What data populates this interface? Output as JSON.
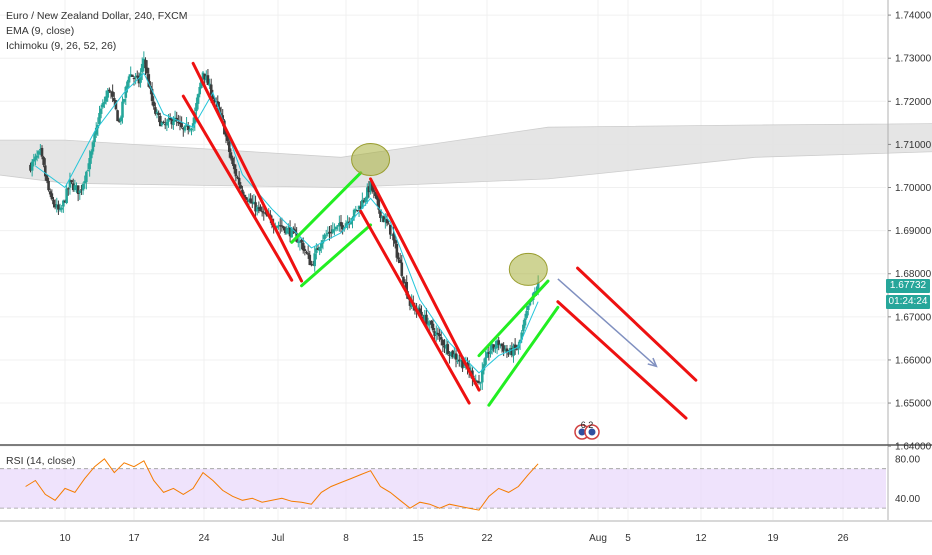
{
  "header": {
    "title": "Euro / New Zealand Dollar, 240, FXCM",
    "indicator_1": "EMA (9, close)",
    "indicator_2": "Ichimoku (9, 26, 52, 26)"
  },
  "rsi_panel": {
    "label": "RSI (14, close)",
    "upper_band": 70,
    "lower_band": 30
  },
  "price_tags": {
    "last_price": "1.67732",
    "countdown": "01:24:24"
  },
  "badge_text": "6 2",
  "colors": {
    "candle_up": "#26a69a",
    "candle_down": "#3c3c3c",
    "ema": "#26c6da",
    "cloud": "#e3e3e3",
    "cloud_edge": "#c8c8c8",
    "channel_red": "#ee1111",
    "channel_green": "#22ee22",
    "highlight_ellipse": "#a8b03c",
    "projection_arrow": "#8090c0",
    "rsi_line": "#f57c00",
    "rsi_band_fill": "#ead9fb",
    "price_tag": "#26a69a",
    "countdown_tag": "#26a69a"
  },
  "chart_data": {
    "type": "candlestick",
    "symbol": "EURNZD",
    "timeframe": "240",
    "y_axis": {
      "ticks": [
        "1.74000",
        "1.73000",
        "1.72000",
        "1.71000",
        "1.70000",
        "1.69000",
        "1.68000",
        "1.67000",
        "1.66000",
        "1.65000",
        "1.64000"
      ],
      "range": [
        1.6405,
        1.7435
      ]
    },
    "x_axis": {
      "ticks": [
        "10",
        "17",
        "24",
        "Jul",
        "8",
        "15",
        "22",
        "Aug",
        "5",
        "12",
        "19",
        "26"
      ]
    },
    "rsi_axis": {
      "ticks": [
        "80.00",
        "40.00"
      ],
      "range": [
        18,
        92
      ]
    },
    "price_path": [
      [
        "Jun 6 12:00",
        1.705
      ],
      [
        "Jun 7 12:00",
        1.708
      ],
      [
        "Jun 8 12:00",
        1.6975
      ],
      [
        "Jun 9 12:00",
        1.694
      ],
      [
        "Jun 10 12:00",
        1.701
      ],
      [
        "Jun 11 12:00",
        1.699
      ],
      [
        "Jun 12 12:00",
        1.706
      ],
      [
        "Jun 13 12:00",
        1.717
      ],
      [
        "Jun 14 12:00",
        1.723
      ],
      [
        "Jun 15 12:00",
        1.715
      ],
      [
        "Jun 16 12:00",
        1.7265
      ],
      [
        "Jun 17 12:00",
        1.7245
      ],
      [
        "Jun 18 00:00",
        1.73
      ],
      [
        "Jun 19 00:00",
        1.718
      ],
      [
        "Jun 20 00:00",
        1.714
      ],
      [
        "Jun 21 00:00",
        1.716
      ],
      [
        "Jun 22 00:00",
        1.713
      ],
      [
        "Jun 23 00:00",
        1.715
      ],
      [
        "Jun 24 00:00",
        1.727
      ],
      [
        "Jun 25 00:00",
        1.721
      ],
      [
        "Jun 26 00:00",
        1.715
      ],
      [
        "Jun 27 00:00",
        1.705
      ],
      [
        "Jun 28 00:00",
        1.699
      ],
      [
        "Jun 29 00:00",
        1.696
      ],
      [
        "Jun 30 00:00",
        1.694
      ],
      [
        "Jul 1 00:00",
        1.692
      ],
      [
        "Jul 2 00:00",
        1.691
      ],
      [
        "Jul 3 00:00",
        1.6895
      ],
      [
        "Jul 4 00:00",
        1.687
      ],
      [
        "Jul 5 00:00",
        1.682
      ],
      [
        "Jul 6 00:00",
        1.688
      ],
      [
        "Jul 7 00:00",
        1.69
      ],
      [
        "Jul 8 00:00",
        1.691
      ],
      [
        "Jul 9 00:00",
        1.693
      ],
      [
        "Jul 10 00:00",
        1.696
      ],
      [
        "Jul 11 00:00",
        1.7005
      ],
      [
        "Jul 12 00:00",
        1.694
      ],
      [
        "Jul 13 00:00",
        1.69
      ],
      [
        "Jul 14 00:00",
        1.682
      ],
      [
        "Jul 15 00:00",
        1.673
      ],
      [
        "Jul 16 00:00",
        1.671
      ],
      [
        "Jul 17 00:00",
        1.668
      ],
      [
        "Jul 18 00:00",
        1.665
      ],
      [
        "Jul 19 00:00",
        1.662
      ],
      [
        "Jul 20 00:00",
        1.66
      ],
      [
        "Jul 21 00:00",
        1.6575
      ],
      [
        "Jul 22 00:00",
        1.6545
      ],
      [
        "Jul 23 00:00",
        1.662
      ],
      [
        "Jul 24 00:00",
        1.664
      ],
      [
        "Jul 25 00:00",
        1.6615
      ],
      [
        "Jul 26 00:00",
        1.663
      ],
      [
        "Jul 27 00:00",
        1.672
      ],
      [
        "Jul 28 00:00",
        1.6773
      ]
    ],
    "ema_9": [
      [
        "Jun 7 00:00",
        1.705
      ],
      [
        "Jun 10 00:00",
        1.7
      ],
      [
        "Jun 13 00:00",
        1.713
      ],
      [
        "Jun 16 00:00",
        1.722
      ],
      [
        "Jun 18 00:00",
        1.7265
      ],
      [
        "Jun 20 00:00",
        1.717
      ],
      [
        "Jun 23 00:00",
        1.714
      ],
      [
        "Jun 25 00:00",
        1.722
      ],
      [
        "Jun 28 00:00",
        1.703
      ],
      [
        "Jul 1 00:00",
        1.695
      ],
      [
        "Jul 5 00:00",
        1.686
      ],
      [
        "Jul 8 00:00",
        1.6895
      ],
      [
        "Jul 11 00:00",
        1.6975
      ],
      [
        "Jul 13 00:00",
        1.692
      ],
      [
        "Jul 16 00:00",
        1.674
      ],
      [
        "Jul 19 00:00",
        1.664
      ],
      [
        "Jul 22 00:00",
        1.657
      ],
      [
        "Jul 24 00:00",
        1.661
      ],
      [
        "Jul 26 00:00",
        1.663
      ],
      [
        "Jul 28 00:00",
        1.6735
      ]
    ],
    "ichimoku_cloud_top": [
      [
        "Jun 6 00:00",
        1.711
      ],
      [
        "Jun 10 00:00",
        1.711
      ],
      [
        "Jun 14 00:00",
        1.707
      ],
      [
        "Jun 17 00:00",
        1.714
      ],
      [
        "Jun 20 00:00",
        1.7145
      ],
      [
        "Jun 24 00:00",
        1.715
      ],
      [
        "Jun 27 00:00",
        1.722
      ],
      [
        "Jul 1 00:00",
        1.722
      ],
      [
        "Jul 4 00:00",
        1.718
      ],
      [
        "Jul 7 00:00",
        1.712
      ],
      [
        "Jul 10 00:00",
        1.706
      ],
      [
        "Jul 13 00:00",
        1.698
      ],
      [
        "Jul 16 00:00",
        1.696
      ],
      [
        "Jul 19 00:00",
        1.692
      ],
      [
        "Jul 22 00:00",
        1.688
      ],
      [
        "Jul 25 00:00",
        1.684
      ],
      [
        "Jul 28 00:00",
        1.679
      ],
      [
        "Jul 31 00:00",
        1.672
      ],
      [
        "Aug 1 12:00",
        1.669
      ]
    ],
    "ichimoku_cloud_bottom": [
      [
        "Jun 6 00:00",
        1.709
      ],
      [
        "Jun 10 00:00",
        1.701
      ],
      [
        "Jun 14 00:00",
        1.7
      ],
      [
        "Jun 17 00:00",
        1.702
      ],
      [
        "Jun 20 00:00",
        1.707
      ],
      [
        "Jun 24 00:00",
        1.709
      ],
      [
        "Jun 27 00:00",
        1.71
      ],
      [
        "Jul 1 00:00",
        1.708
      ],
      [
        "Jul 4 00:00",
        1.703
      ],
      [
        "Jul 7 00:00",
        1.701
      ],
      [
        "Jul 10 00:00",
        1.699
      ],
      [
        "Jul 13 00:00",
        1.694
      ],
      [
        "Jul 16 00:00",
        1.688
      ],
      [
        "Jul 19 00:00",
        1.681
      ],
      [
        "Jul 22 00:00",
        1.676
      ],
      [
        "Jul 25 00:00",
        1.673
      ],
      [
        "Jul 28 00:00",
        1.666
      ],
      [
        "Jul 31 00:00",
        1.661
      ],
      [
        "Aug 1 12:00",
        1.66
      ]
    ],
    "rsi_path": [
      [
        "Jun 6 00:00",
        52
      ],
      [
        "Jun 7 00:00",
        58
      ],
      [
        "Jun 8 00:00",
        44
      ],
      [
        "Jun 9 00:00",
        38
      ],
      [
        "Jun 10 00:00",
        50
      ],
      [
        "Jun 11 00:00",
        46
      ],
      [
        "Jun 12 00:00",
        60
      ],
      [
        "Jun 13 00:00",
        72
      ],
      [
        "Jun 14 00:00",
        80
      ],
      [
        "Jun 15 00:00",
        66
      ],
      [
        "Jun 16 00:00",
        76
      ],
      [
        "Jun 17 00:00",
        72
      ],
      [
        "Jun 18 00:00",
        78
      ],
      [
        "Jun 19 00:00",
        58
      ],
      [
        "Jun 20 00:00",
        46
      ],
      [
        "Jun 21 00:00",
        50
      ],
      [
        "Jun 22 00:00",
        44
      ],
      [
        "Jun 23 00:00",
        50
      ],
      [
        "Jun 24 00:00",
        66
      ],
      [
        "Jun 25 00:00",
        58
      ],
      [
        "Jun 26 00:00",
        48
      ],
      [
        "Jun 27 00:00",
        42
      ],
      [
        "Jun 28 00:00",
        38
      ],
      [
        "Jun 29 00:00",
        40
      ],
      [
        "Jun 30 00:00",
        36
      ],
      [
        "Jul 1 00:00",
        38
      ],
      [
        "Jul 2 00:00",
        40
      ],
      [
        "Jul 3 00:00",
        37
      ],
      [
        "Jul 4 00:00",
        36
      ],
      [
        "Jul 5 00:00",
        34
      ],
      [
        "Jul 6 00:00",
        46
      ],
      [
        "Jul 7 00:00",
        52
      ],
      [
        "Jul 8 00:00",
        56
      ],
      [
        "Jul 9 00:00",
        60
      ],
      [
        "Jul 10 00:00",
        64
      ],
      [
        "Jul 11 00:00",
        68
      ],
      [
        "Jul 12 00:00",
        52
      ],
      [
        "Jul 13 00:00",
        46
      ],
      [
        "Jul 14 00:00",
        38
      ],
      [
        "Jul 15 00:00",
        30
      ],
      [
        "Jul 16 00:00",
        36
      ],
      [
        "Jul 17 00:00",
        34
      ],
      [
        "Jul 18 00:00",
        30
      ],
      [
        "Jul 19 00:00",
        34
      ],
      [
        "Jul 20 00:00",
        32
      ],
      [
        "Jul 21 00:00",
        30
      ],
      [
        "Jul 22 00:00",
        28
      ],
      [
        "Jul 23 00:00",
        42
      ],
      [
        "Jul 24 00:00",
        50
      ],
      [
        "Jul 25 00:00",
        46
      ],
      [
        "Jul 26 00:00",
        52
      ],
      [
        "Jul 27 00:00",
        64
      ],
      [
        "Jul 28 00:00",
        75
      ]
    ],
    "drawings": [
      {
        "type": "channel",
        "color": "red",
        "lines": [
          [
            [
              "Jun 23 00:00",
              1.7288
            ],
            [
              "Jul 4 00:00",
              1.6783
            ]
          ],
          [
            [
              "Jun 22 00:00",
              1.7212
            ],
            [
              "Jul 3 00:00",
              1.6785
            ]
          ]
        ]
      },
      {
        "type": "channel",
        "color": "green",
        "lines": [
          [
            [
              "Jul 3 00:00",
              1.6873
            ],
            [
              "Jul 10 00:00",
              1.7034
            ]
          ],
          [
            [
              "Jul 4 00:00",
              1.6772
            ],
            [
              "Jul 11 00:00",
              1.6913
            ]
          ]
        ]
      },
      {
        "type": "channel",
        "color": "red",
        "lines": [
          [
            [
              "Jul 11 00:00",
              1.702
            ],
            [
              "Jul 22 00:00",
              1.653
            ]
          ],
          [
            [
              "Jul 10 00:00",
              1.6945
            ],
            [
              "Jul 21 00:00",
              1.65
            ]
          ]
        ]
      },
      {
        "type": "channel",
        "color": "green",
        "lines": [
          [
            [
              "Jul 22 00:00",
              1.661
            ],
            [
              "Jul 29 00:00",
              1.6783
            ]
          ],
          [
            [
              "Jul 23 00:00",
              1.6495
            ],
            [
              "Jul 30 00:00",
              1.6722
            ]
          ]
        ]
      },
      {
        "type": "channel",
        "color": "red",
        "lines": [
          [
            [
              "Aug 1 00:00",
              1.6813
            ],
            [
              "Aug 13 00:00",
              1.6553
            ]
          ],
          [
            [
              "Jul 30 00:00",
              1.6735
            ],
            [
              "Aug 12 00:00",
              1.6465
            ]
          ]
        ]
      },
      {
        "type": "ellipse",
        "center": [
          "Jul 11 00:00",
          1.7065
        ],
        "label": ""
      },
      {
        "type": "ellipse",
        "center": [
          "Jul 27 00:00",
          1.681
        ],
        "label": ""
      },
      {
        "type": "arrow",
        "from": [
          "Jul 30 00:00",
          1.6788
        ],
        "to": [
          "Aug 9 00:00",
          1.6585
        ]
      }
    ]
  }
}
